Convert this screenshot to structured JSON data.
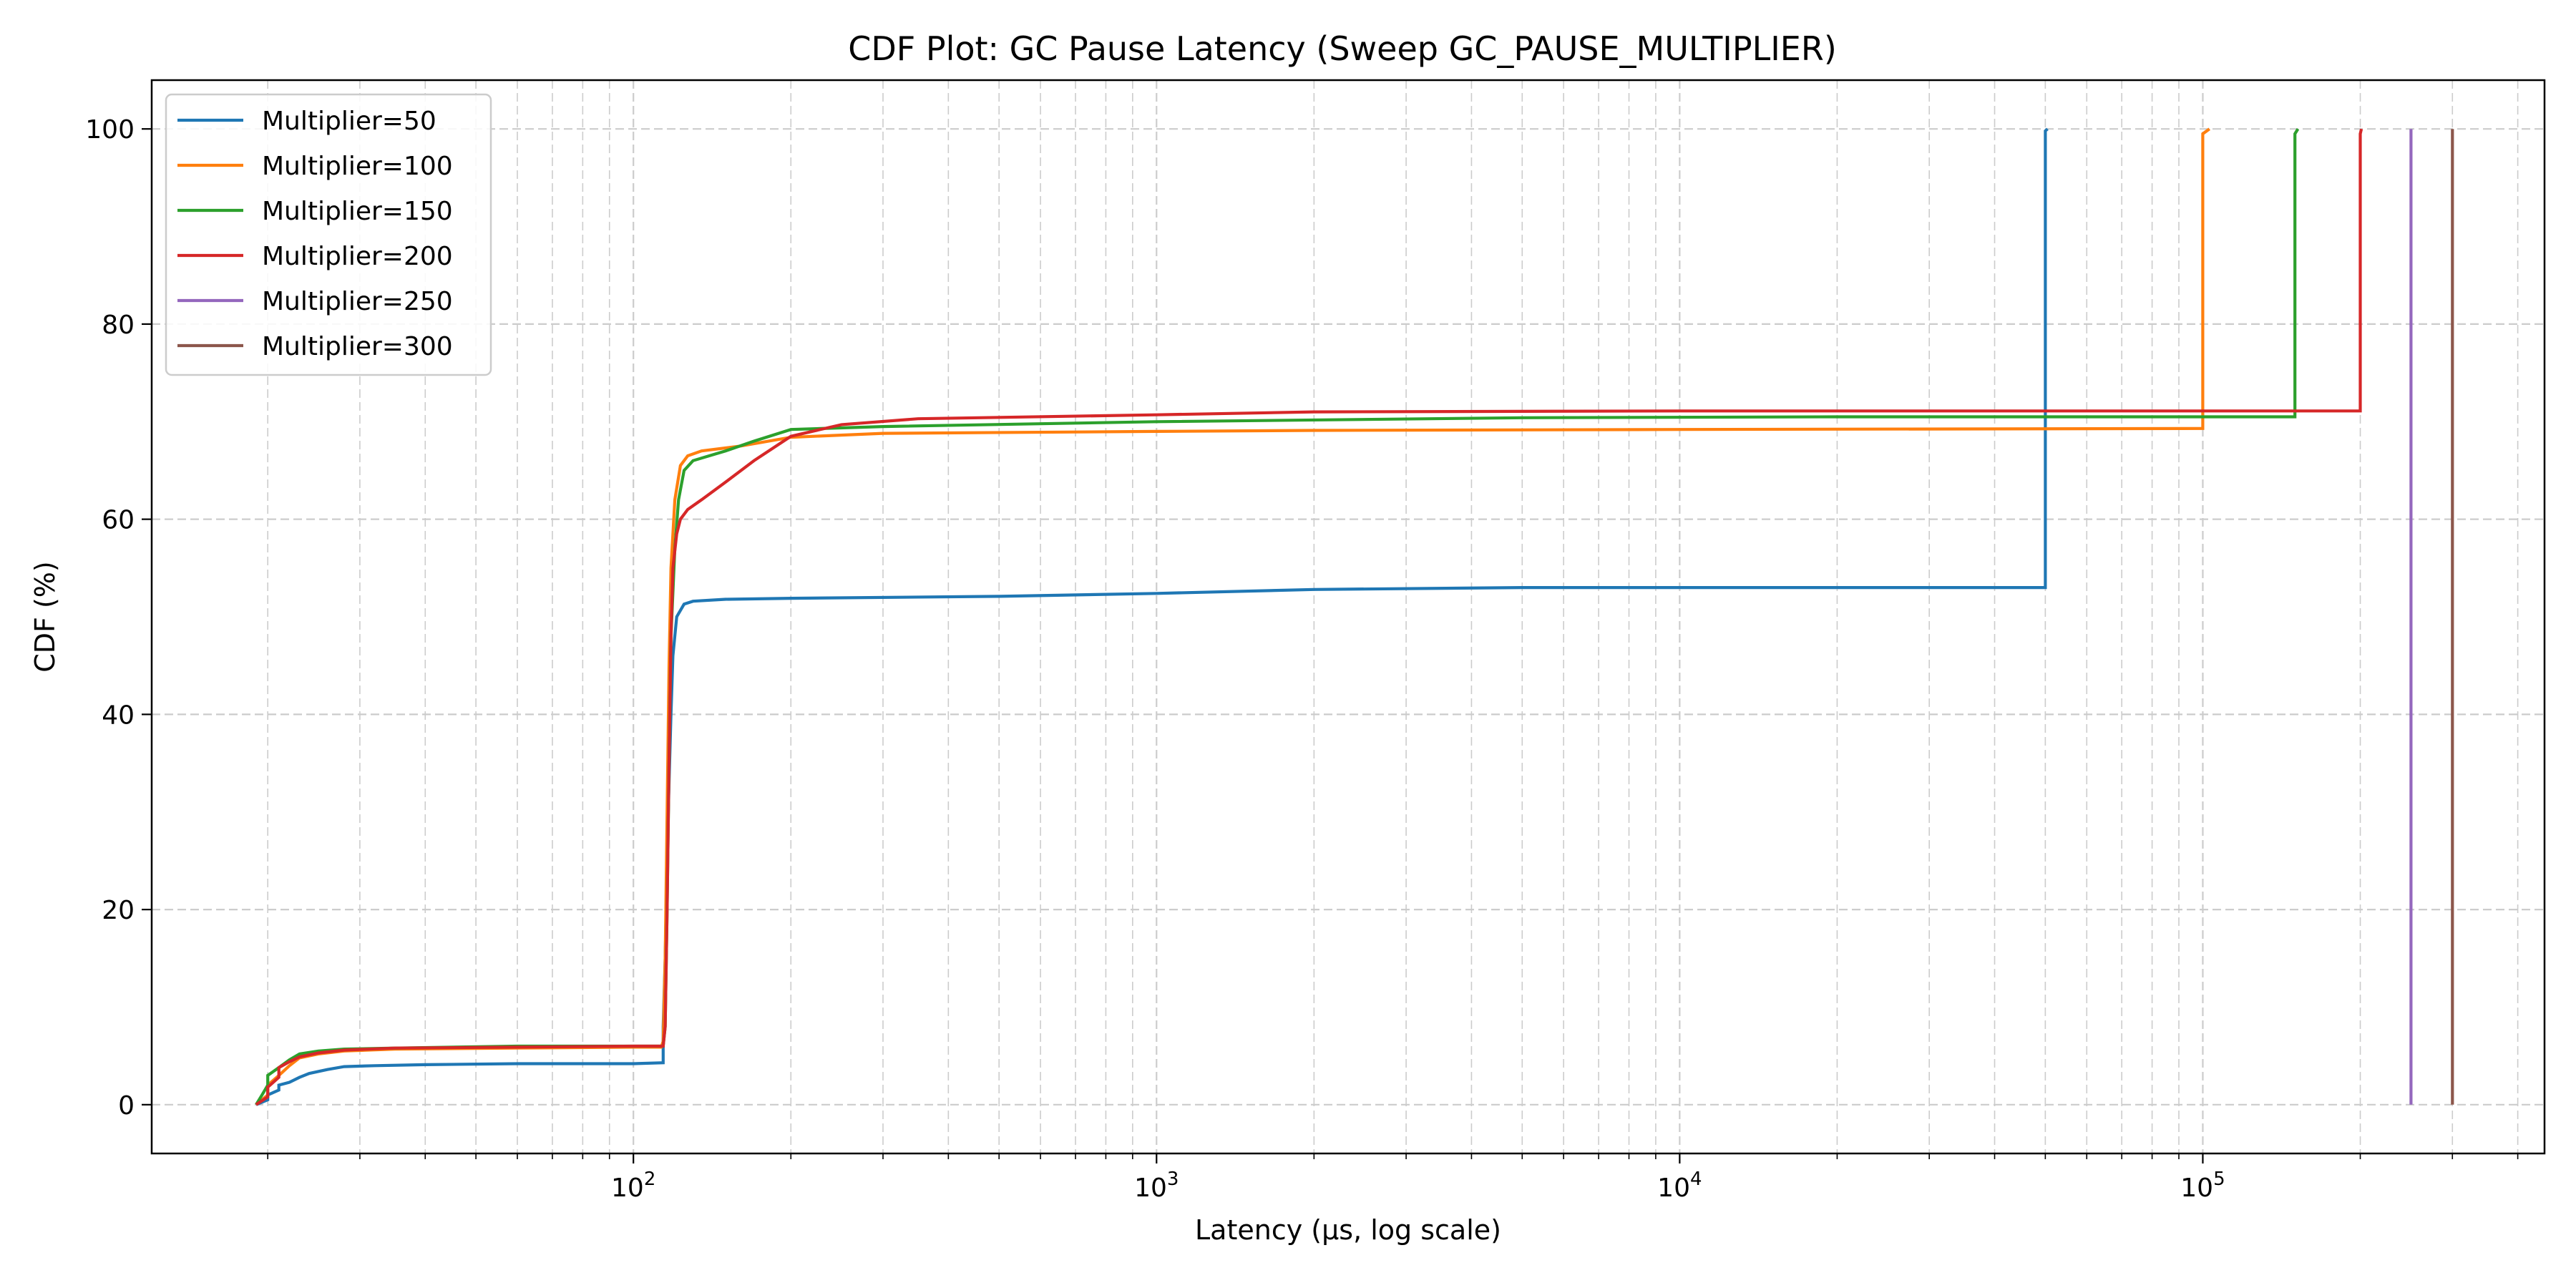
{
  "chart_data": {
    "type": "line",
    "title": "CDF Plot: GC Pause Latency (Sweep GC_PAUSE_MULTIPLIER)",
    "xlabel": "Latency (µs, log scale)",
    "ylabel": "CDF (%)",
    "x_scale": "log",
    "xlim": [
      12,
      450000
    ],
    "ylim": [
      -5,
      105
    ],
    "x_ticks": [
      {
        "value": 100,
        "base": "10",
        "exp": "2"
      },
      {
        "value": 1000,
        "base": "10",
        "exp": "3"
      },
      {
        "value": 10000,
        "base": "10",
        "exp": "4"
      },
      {
        "value": 100000,
        "base": "10",
        "exp": "5"
      }
    ],
    "y_ticks": [
      0,
      20,
      40,
      60,
      80,
      100
    ],
    "grid": true,
    "legend_position": "top-left",
    "series": [
      {
        "name": "Multiplier=50",
        "color": "#1f77b4",
        "points": [
          [
            19,
            0
          ],
          [
            20,
            0.5
          ],
          [
            20,
            1
          ],
          [
            21,
            1.5
          ],
          [
            21,
            2
          ],
          [
            22,
            2.3
          ],
          [
            23,
            2.8
          ],
          [
            24,
            3.2
          ],
          [
            26,
            3.6
          ],
          [
            28,
            3.9
          ],
          [
            32,
            4.0
          ],
          [
            40,
            4.1
          ],
          [
            60,
            4.2
          ],
          [
            100,
            4.2
          ],
          [
            114,
            4.3
          ],
          [
            114,
            8
          ],
          [
            115,
            15
          ],
          [
            116,
            25
          ],
          [
            117,
            33
          ],
          [
            118,
            40
          ],
          [
            119,
            46
          ],
          [
            121,
            50
          ],
          [
            125,
            51.3
          ],
          [
            130,
            51.6
          ],
          [
            150,
            51.8
          ],
          [
            200,
            51.9
          ],
          [
            500,
            52.1
          ],
          [
            1000,
            52.4
          ],
          [
            2000,
            52.8
          ],
          [
            5000,
            53.0
          ],
          [
            20000,
            53.0
          ],
          [
            50000,
            53.0
          ],
          [
            50000,
            99.8
          ],
          [
            50500,
            100
          ]
        ]
      },
      {
        "name": "Multiplier=100",
        "color": "#ff7f0e",
        "points": [
          [
            19,
            0
          ],
          [
            20,
            1
          ],
          [
            20,
            2
          ],
          [
            21,
            3
          ],
          [
            22,
            4
          ],
          [
            23,
            4.8
          ],
          [
            25,
            5.2
          ],
          [
            28,
            5.5
          ],
          [
            35,
            5.7
          ],
          [
            60,
            5.8
          ],
          [
            100,
            5.9
          ],
          [
            113,
            5.9
          ],
          [
            114,
            6.5
          ],
          [
            115,
            15
          ],
          [
            116,
            30
          ],
          [
            117,
            45
          ],
          [
            118,
            55
          ],
          [
            120,
            62
          ],
          [
            123,
            65.5
          ],
          [
            127,
            66.5
          ],
          [
            135,
            67
          ],
          [
            160,
            67.5
          ],
          [
            200,
            68.4
          ],
          [
            300,
            68.8
          ],
          [
            1000,
            69.0
          ],
          [
            2000,
            69.1
          ],
          [
            10000,
            69.2
          ],
          [
            100000,
            69.3
          ],
          [
            100000,
            99.5
          ],
          [
            103000,
            100
          ]
        ]
      },
      {
        "name": "Multiplier=150",
        "color": "#2ca02c",
        "points": [
          [
            19,
            0
          ],
          [
            19.5,
            1
          ],
          [
            20,
            2
          ],
          [
            20,
            3
          ],
          [
            21,
            3.8
          ],
          [
            22,
            4.6
          ],
          [
            23,
            5.2
          ],
          [
            25,
            5.5
          ],
          [
            28,
            5.7
          ],
          [
            35,
            5.8
          ],
          [
            60,
            6.0
          ],
          [
            100,
            6.0
          ],
          [
            114,
            6.0
          ],
          [
            115,
            8
          ],
          [
            116,
            20
          ],
          [
            117,
            35
          ],
          [
            118,
            48
          ],
          [
            120,
            57
          ],
          [
            122,
            62
          ],
          [
            125,
            65
          ],
          [
            130,
            66
          ],
          [
            150,
            67
          ],
          [
            170,
            68
          ],
          [
            200,
            69.2
          ],
          [
            300,
            69.5
          ],
          [
            1000,
            70.0
          ],
          [
            5000,
            70.4
          ],
          [
            20000,
            70.5
          ],
          [
            150000,
            70.5
          ],
          [
            150000,
            99.5
          ],
          [
            152000,
            100
          ]
        ]
      },
      {
        "name": "Multiplier=200",
        "color": "#d62728",
        "points": [
          [
            19,
            0
          ],
          [
            20,
            0.8
          ],
          [
            20,
            1.8
          ],
          [
            21,
            2.8
          ],
          [
            21,
            3.8
          ],
          [
            22,
            4.4
          ],
          [
            23,
            4.9
          ],
          [
            25,
            5.3
          ],
          [
            28,
            5.6
          ],
          [
            35,
            5.8
          ],
          [
            60,
            5.9
          ],
          [
            100,
            6.0
          ],
          [
            114,
            6.0
          ],
          [
            115,
            8
          ],
          [
            116,
            20
          ],
          [
            117,
            35
          ],
          [
            118,
            48
          ],
          [
            119,
            55
          ],
          [
            121,
            58.5
          ],
          [
            123,
            60
          ],
          [
            127,
            61
          ],
          [
            135,
            62
          ],
          [
            150,
            63.8
          ],
          [
            170,
            66
          ],
          [
            200,
            68.5
          ],
          [
            250,
            69.7
          ],
          [
            350,
            70.3
          ],
          [
            1000,
            70.7
          ],
          [
            2000,
            71.0
          ],
          [
            10000,
            71.1
          ],
          [
            200000,
            71.1
          ],
          [
            200000,
            99.5
          ],
          [
            201000,
            100
          ]
        ]
      },
      {
        "name": "Multiplier=250",
        "color": "#9467bd",
        "points": [
          [
            250000,
            0
          ],
          [
            250000,
            100
          ]
        ]
      },
      {
        "name": "Multiplier=300",
        "color": "#8c564b",
        "points": [
          [
            300000,
            0
          ],
          [
            300000,
            100
          ]
        ]
      }
    ]
  }
}
